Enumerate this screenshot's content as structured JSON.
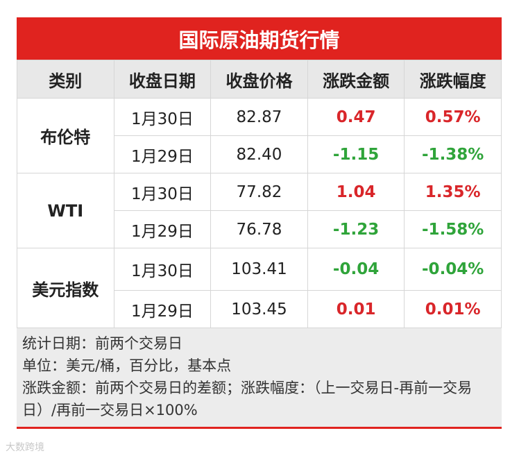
{
  "title": "国际原油期货行情",
  "table": {
    "columns": [
      "类别",
      "收盘日期",
      "收盘价格",
      "涨跌金额",
      "涨跌幅度"
    ],
    "groups": [
      {
        "name": "布伦特",
        "rows": [
          [
            "1月30日",
            "82.87",
            "0.47",
            "0.57%"
          ],
          [
            "1月29日",
            "82.40",
            "-1.15",
            "-1.38%"
          ]
        ]
      },
      {
        "name": "WTI",
        "rows": [
          [
            "1月30日",
            "77.82",
            "1.04",
            "1.35%"
          ],
          [
            "1月29日",
            "76.78",
            "-1.23",
            "-1.58%"
          ]
        ]
      },
      {
        "name": "美元指数",
        "rows": [
          [
            "1月30日",
            "103.41",
            "-0.04",
            "-0.04%"
          ],
          [
            "1月29日",
            "103.45",
            "0.01",
            "0.01%"
          ]
        ]
      }
    ]
  },
  "notes": [
    "统计日期：前两个交易日",
    "单位：美元/桶，百分比，基本点",
    "涨跌金额：前两个交易日的差额；涨跌幅度：（上一交易日-再前一交易日）/再前一交易日×100%"
  ],
  "watermark": "大数跨境"
}
